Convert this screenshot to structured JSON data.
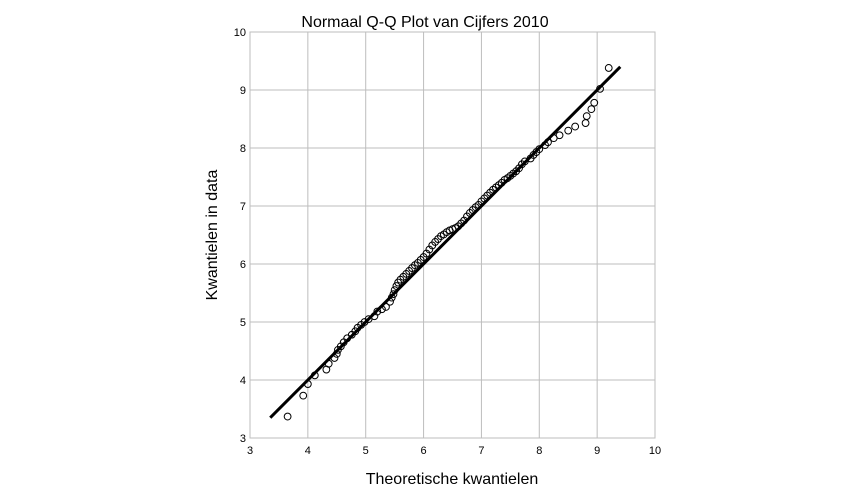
{
  "chart_data": {
    "type": "scatter",
    "title": "Normaal Q-Q Plot van Cijfers 2010",
    "xlabel": "Theoretische kwantielen",
    "ylabel": "Kwantielen in data",
    "xlim": [
      3,
      10
    ],
    "ylim": [
      3,
      10
    ],
    "xticks": [
      "3",
      "4",
      "5",
      "6",
      "7",
      "8",
      "9",
      "10"
    ],
    "yticks": [
      "3",
      "4",
      "5",
      "6",
      "7",
      "8",
      "9",
      "10"
    ],
    "grid": true,
    "reference_line": {
      "x": [
        3.35,
        9.4
      ],
      "y": [
        3.35,
        9.4
      ]
    },
    "points": {
      "x": [
        3.65,
        3.92,
        4.0,
        4.12,
        4.32,
        4.36,
        4.46,
        4.5,
        4.52,
        4.57,
        4.62,
        4.68,
        4.76,
        4.82,
        4.86,
        4.92,
        4.98,
        5.05,
        5.15,
        5.2,
        5.28,
        5.35,
        5.42,
        5.45,
        5.48,
        5.5,
        5.53,
        5.56,
        5.6,
        5.65,
        5.7,
        5.75,
        5.8,
        5.85,
        5.9,
        5.95,
        6.0,
        6.05,
        6.1,
        6.15,
        6.2,
        6.25,
        6.3,
        6.35,
        6.4,
        6.45,
        6.5,
        6.55,
        6.6,
        6.65,
        6.7,
        6.75,
        6.8,
        6.85,
        6.9,
        6.95,
        7.0,
        7.05,
        7.1,
        7.15,
        7.2,
        7.25,
        7.3,
        7.35,
        7.4,
        7.45,
        7.5,
        7.55,
        7.6,
        7.65,
        7.7,
        7.75,
        7.85,
        7.9,
        7.95,
        8.0,
        8.1,
        8.15,
        8.25,
        8.35,
        8.5,
        8.62,
        8.8,
        8.82,
        8.9,
        8.95,
        9.05,
        9.2
      ],
      "y": [
        3.37,
        3.73,
        3.93,
        4.08,
        4.18,
        4.28,
        4.38,
        4.45,
        4.52,
        4.58,
        4.65,
        4.72,
        4.78,
        4.84,
        4.9,
        4.95,
        5.0,
        5.05,
        5.1,
        5.18,
        5.22,
        5.26,
        5.35,
        5.42,
        5.48,
        5.55,
        5.62,
        5.68,
        5.73,
        5.78,
        5.83,
        5.88,
        5.93,
        5.98,
        6.02,
        6.07,
        6.12,
        6.18,
        6.25,
        6.32,
        6.38,
        6.43,
        6.48,
        6.51,
        6.55,
        6.58,
        6.6,
        6.62,
        6.65,
        6.7,
        6.75,
        6.82,
        6.88,
        6.93,
        6.98,
        7.02,
        7.08,
        7.13,
        7.18,
        7.23,
        7.28,
        7.32,
        7.36,
        7.4,
        7.45,
        7.48,
        7.52,
        7.56,
        7.6,
        7.65,
        7.72,
        7.77,
        7.82,
        7.88,
        7.93,
        7.98,
        8.05,
        8.1,
        8.17,
        8.22,
        8.3,
        8.37,
        8.43,
        8.55,
        8.67,
        8.78,
        9.02,
        9.38
      ]
    }
  }
}
